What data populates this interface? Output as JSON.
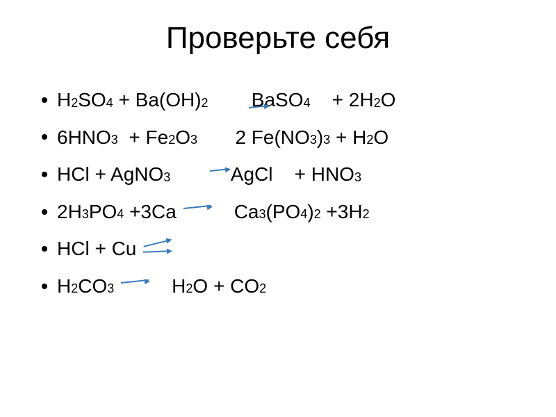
{
  "slide": {
    "title": "Проверьте себя",
    "background_color": "#ffffff",
    "text_color": "#000000",
    "arrow_color": "#3a7ab8",
    "title_fontsize": 44,
    "body_fontsize": 28,
    "sub_fontsize": 18,
    "equations": [
      {
        "reactants": [
          {
            "t": "H"
          },
          {
            "t": "2",
            "sub": true
          },
          {
            "t": "SO"
          },
          {
            "t": "4",
            "sub": true
          },
          {
            "t": " + Ba(OH)"
          },
          {
            "t": "2",
            "sub": true
          },
          {
            "t": "        "
          }
        ],
        "arrow": "none",
        "products": [
          {
            "t": "BaSO"
          },
          {
            "t": "4",
            "sub": true
          },
          {
            "t": "    + 2H"
          },
          {
            "t": "2",
            "sub": true
          },
          {
            "t": "O"
          }
        ],
        "arrow_over_b": true
      },
      {
        "reactants": [
          {
            "t": "6HNO"
          },
          {
            "t": "3",
            "sub": true
          },
          {
            "t": "  + Fe"
          },
          {
            "t": "2",
            "sub": true
          },
          {
            "t": "O"
          },
          {
            "t": "3",
            "sub": true
          },
          {
            "t": "       2 Fe(NO"
          },
          {
            "t": "3",
            "sub": true
          },
          {
            "t": ")"
          },
          {
            "t": "3",
            "sub": true
          },
          {
            "t": " + H"
          },
          {
            "t": "2",
            "sub": true
          },
          {
            "t": "O"
          }
        ],
        "arrow": "none",
        "products": []
      },
      {
        "reactants": [
          {
            "t": "HCl + AgNO"
          },
          {
            "t": "3",
            "sub": true
          },
          {
            "t": "       "
          }
        ],
        "arrow": "single-narrow",
        "products": [
          {
            "t": "AgCl"
          },
          {
            "t": "    + HNO"
          },
          {
            "t": "3",
            "sub": true
          }
        ]
      },
      {
        "reactants": [
          {
            "t": "2H"
          },
          {
            "t": "3",
            "sub": true
          },
          {
            "t": "PO"
          },
          {
            "t": "4",
            "sub": true
          },
          {
            "t": " +3Ca "
          }
        ],
        "arrow": "single",
        "products": [
          {
            "t": "    Ca"
          },
          {
            "t": "3",
            "sub": true
          },
          {
            "t": "(PO"
          },
          {
            "t": "4",
            "sub": true
          },
          {
            "t": ")"
          },
          {
            "t": "2",
            "sub": true
          },
          {
            "t": " +3H"
          },
          {
            "t": "2",
            "sub": true
          }
        ]
      },
      {
        "reactants": [
          {
            "t": "HCl + Cu "
          }
        ],
        "arrow": "double",
        "products": []
      },
      {
        "reactants": [
          {
            "t": "H"
          },
          {
            "t": "2",
            "sub": true
          },
          {
            "t": "CO"
          },
          {
            "t": "3",
            "sub": true
          },
          {
            "t": " "
          }
        ],
        "arrow": "single",
        "products": [
          {
            "t": "    H"
          },
          {
            "t": "2",
            "sub": true
          },
          {
            "t": "O + CO"
          },
          {
            "t": "2",
            "sub": true
          }
        ]
      }
    ]
  }
}
